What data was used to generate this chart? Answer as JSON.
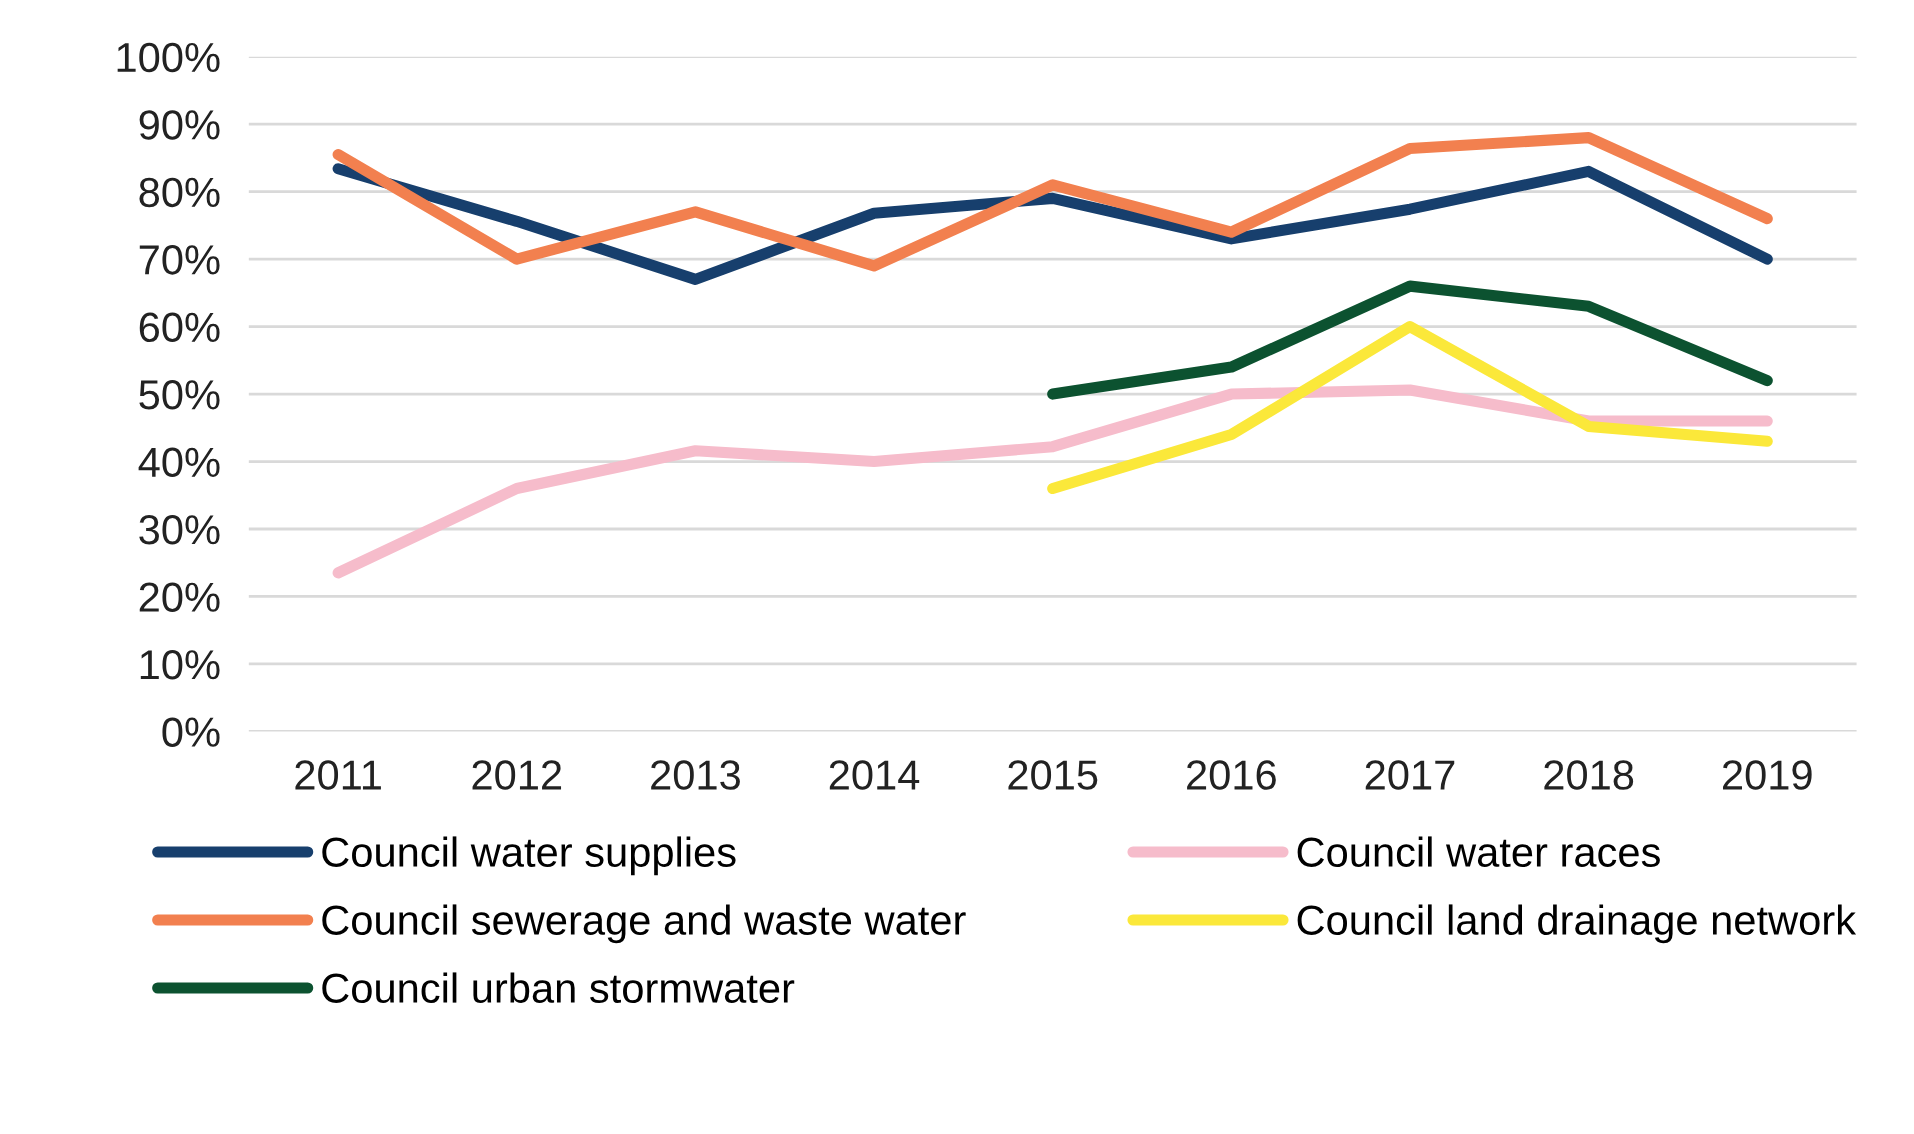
{
  "chart_data": {
    "type": "line",
    "categories": [
      "2011",
      "2012",
      "2013",
      "2014",
      "2015",
      "2016",
      "2017",
      "2018",
      "2019"
    ],
    "series": [
      {
        "name": "Council water supplies",
        "color": "#173f6d",
        "values": [
          83.4,
          75.6,
          67,
          76.8,
          79,
          73,
          77.4,
          83,
          70
        ]
      },
      {
        "name": "Council sewerage and waste water",
        "color": "#f2804f",
        "values": [
          85.5,
          70,
          77,
          69,
          81,
          74,
          86.4,
          88,
          76
        ]
      },
      {
        "name": "Council urban stormwater",
        "color": "#0c5230",
        "values": [
          null,
          null,
          null,
          null,
          50,
          54,
          66,
          63,
          52
        ]
      },
      {
        "name": "Council water races",
        "color": "#f6bccb",
        "values": [
          23.5,
          36,
          41.6,
          40,
          42.2,
          50,
          50.6,
          46,
          46
        ]
      },
      {
        "name": "Council land drainage network",
        "color": "#fbe83a",
        "values": [
          null,
          null,
          null,
          null,
          36,
          44,
          60,
          45.2,
          43
        ]
      }
    ],
    "ylim": [
      0,
      100
    ],
    "yticks": [
      {
        "value": 0,
        "label": "0%"
      },
      {
        "value": 10,
        "label": "10%"
      },
      {
        "value": 20,
        "label": "20%"
      },
      {
        "value": 30,
        "label": "30%"
      },
      {
        "value": 40,
        "label": "40%"
      },
      {
        "value": 50,
        "label": "50%"
      },
      {
        "value": 60,
        "label": "60%"
      },
      {
        "value": 70,
        "label": "70%"
      },
      {
        "value": 80,
        "label": "80%"
      },
      {
        "value": 90,
        "label": "90%"
      },
      {
        "value": 100,
        "label": "100%"
      }
    ],
    "grid": "y",
    "legend": "bottom",
    "marker": "none",
    "line_style": "solid"
  }
}
